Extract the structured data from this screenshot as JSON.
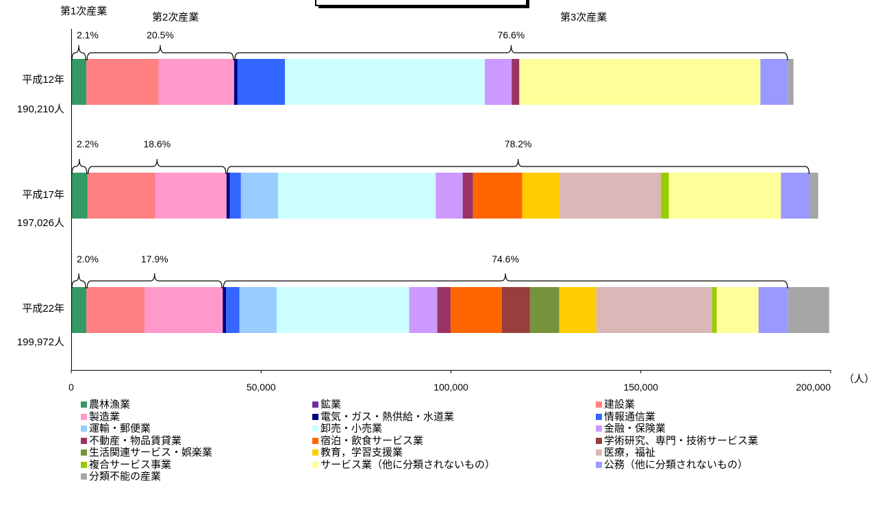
{
  "chart_data": {
    "type": "bar",
    "orientation": "horizontal",
    "stacked": true,
    "unit_label": "（人）",
    "xlim": [
      0,
      200000
    ],
    "x_ticks": [
      {
        "value": 0,
        "label": "0"
      },
      {
        "value": 50000,
        "label": "50,000"
      },
      {
        "value": 100000,
        "label": "100,000"
      },
      {
        "value": 150000,
        "label": "150,000"
      },
      {
        "value": 200000,
        "label": "200,000"
      }
    ],
    "grid": false,
    "legend_position": "bottom",
    "sector_groups": [
      {
        "name": "第1次産業",
        "members": [
          "農林漁業"
        ]
      },
      {
        "name": "第2次産業",
        "members": [
          "鉱業",
          "建設業",
          "製造業"
        ]
      },
      {
        "name": "第3次産業",
        "members": [
          "電気・ガス・熱供給・水道業",
          "情報通信業",
          "運輸・郵便業",
          "卸売・小売業",
          "金融・保険業",
          "不動産・物品賃貸業",
          "宿泊・飲食サービス業",
          "学術研究、専門・技術サービス業",
          "生活関連サービス・娯楽業",
          "教育，学習支援業",
          "医療，福祉",
          "複合サービス事業",
          "サービス業（他に分類されないもの）",
          "公務（他に分類されないもの）"
        ]
      }
    ],
    "categories": [
      {
        "label": "平成12年",
        "total_label": "190,210人",
        "sector_shares": [
          "2.1%",
          "20.5%",
          "76.6%"
        ]
      },
      {
        "label": "平成17年",
        "total_label": "197,026人",
        "sector_shares": [
          "2.2%",
          "18.6%",
          "78.2%"
        ]
      },
      {
        "label": "平成22年",
        "total_label": "199,972人",
        "sector_shares": [
          "2.0%",
          "17.9%",
          "74.6%"
        ]
      }
    ],
    "series": [
      {
        "name": "農林漁業",
        "color": "#339966",
        "values": [
          4000,
          4300,
          4000
        ]
      },
      {
        "name": "鉱業",
        "color": "#7030a0",
        "values": [
          0,
          0,
          0
        ]
      },
      {
        "name": "建設業",
        "color": "#ff8080",
        "values": [
          19000,
          17800,
          15300
        ]
      },
      {
        "name": "製造業",
        "color": "#ff99cc",
        "values": [
          19900,
          18800,
          20600
        ]
      },
      {
        "name": "電気・ガス・熱供給・水道業",
        "color": "#000080",
        "values": [
          900,
          900,
          900
        ]
      },
      {
        "name": "情報通信業",
        "color": "#3366ff",
        "values": [
          12500,
          2900,
          3500
        ]
      },
      {
        "name": "運輸・郵便業",
        "color": "#99ccff",
        "values": [
          0,
          9800,
          9800
        ]
      },
      {
        "name": "卸売・小売業",
        "color": "#ccffff",
        "values": [
          52600,
          41500,
          34900
        ]
      },
      {
        "name": "金融・保険業",
        "color": "#cc99ff",
        "values": [
          7100,
          7100,
          7400
        ]
      },
      {
        "name": "不動産・物品賃貸業",
        "color": "#993366",
        "values": [
          2000,
          2700,
          3500
        ]
      },
      {
        "name": "宿泊・飲食サービス業",
        "color": "#ff6600",
        "values": [
          0,
          13000,
          13500
        ]
      },
      {
        "name": "学術研究、専門・技術サービス業",
        "color": "#993d3d",
        "values": [
          0,
          0,
          7400
        ]
      },
      {
        "name": "生活関連サービス・娯楽業",
        "color": "#76923c",
        "values": [
          0,
          0,
          7700
        ]
      },
      {
        "name": "教育，学習支援業",
        "color": "#ffcc00",
        "values": [
          0,
          9800,
          9800
        ]
      },
      {
        "name": "医療，福祉",
        "color": "#dbb7b7",
        "values": [
          0,
          26700,
          30500
        ]
      },
      {
        "name": "複合サービス事業",
        "color": "#99cc00",
        "values": [
          0,
          2100,
          1200
        ]
      },
      {
        "name": "サービス業（他に分類されないもの）",
        "color": "#ffff99",
        "values": [
          63500,
          29500,
          11000
        ]
      },
      {
        "name": "公務（他に分類されないもの）",
        "color": "#9999ff",
        "values": [
          7300,
          7600,
          7800
        ]
      },
      {
        "name": "分類不能の産業",
        "color": "#a6a6a6",
        "values": [
          1400,
          2200,
          10800
        ]
      }
    ]
  }
}
